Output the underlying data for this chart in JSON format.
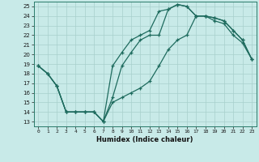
{
  "xlabel": "Humidex (Indice chaleur)",
  "xlim": [
    -0.5,
    23.5
  ],
  "ylim": [
    12.5,
    25.5
  ],
  "xticks": [
    0,
    1,
    2,
    3,
    4,
    5,
    6,
    7,
    8,
    9,
    10,
    11,
    12,
    13,
    14,
    15,
    16,
    17,
    18,
    19,
    20,
    21,
    22,
    23
  ],
  "yticks": [
    13,
    14,
    15,
    16,
    17,
    18,
    19,
    20,
    21,
    22,
    23,
    24,
    25
  ],
  "line_color": "#1e6b5e",
  "bg_color": "#c8eae8",
  "grid_color": "#a8d0cc",
  "line1_x": [
    0,
    1,
    2,
    3,
    4,
    5,
    6,
    7,
    8,
    9,
    10,
    11,
    12,
    13,
    14,
    15,
    16,
    17,
    18,
    19,
    20,
    21,
    22,
    23
  ],
  "line1_y": [
    18.8,
    18.0,
    16.7,
    14.0,
    14.0,
    14.0,
    14.0,
    13.0,
    15.0,
    15.5,
    16.0,
    16.5,
    17.2,
    18.8,
    20.5,
    21.5,
    22.0,
    24.0,
    24.0,
    23.5,
    23.2,
    22.0,
    21.2,
    19.5
  ],
  "line2_x": [
    0,
    1,
    2,
    3,
    4,
    5,
    6,
    7,
    8,
    9,
    10,
    11,
    12,
    13,
    14,
    15,
    16,
    17,
    18,
    19,
    20,
    21,
    22,
    23
  ],
  "line2_y": [
    18.8,
    18.0,
    16.7,
    14.0,
    14.0,
    14.0,
    14.0,
    13.0,
    18.8,
    20.2,
    21.5,
    22.0,
    22.5,
    24.5,
    24.7,
    25.2,
    25.0,
    24.0,
    24.0,
    23.8,
    23.5,
    22.5,
    21.5,
    19.5
  ],
  "line3_x": [
    0,
    1,
    2,
    3,
    4,
    5,
    6,
    7,
    8,
    9,
    10,
    11,
    12,
    13,
    14,
    15,
    16,
    17,
    18,
    19,
    20,
    21,
    22,
    23
  ],
  "line3_y": [
    18.8,
    18.0,
    16.7,
    14.0,
    14.0,
    14.0,
    14.0,
    13.0,
    15.5,
    18.8,
    20.2,
    21.5,
    22.0,
    22.0,
    24.7,
    25.2,
    25.0,
    24.0,
    24.0,
    23.8,
    23.5,
    22.5,
    21.5,
    19.5
  ]
}
